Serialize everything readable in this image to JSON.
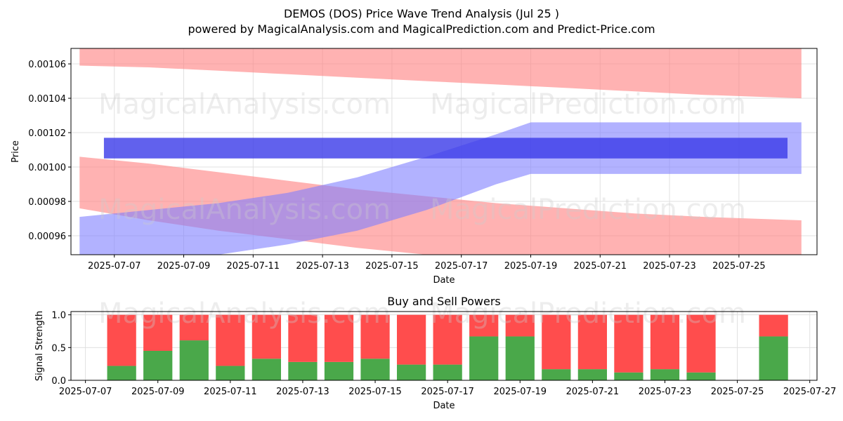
{
  "figure": {
    "title": "DEMOS (DOS) Price Wave Trend Analysis (Jul 25 )",
    "subtitle": "powered by MagicalAnalysis.com and MagicalPrediction.com and Predict-Price.com",
    "watermark_left": "MagicalAnalysis.com",
    "watermark_right": "MagicalPrediction.com"
  },
  "colors": {
    "red_band": "#ff7f7f",
    "blue_band": "#7f7fff",
    "blue_bar": "#3a3ae8",
    "buy": "#4aa84a",
    "sell": "#ff4d4d",
    "grid": "#e0e0e0"
  },
  "chart_data": [
    {
      "type": "area",
      "title": "",
      "xlabel": "Date",
      "ylabel": "Price",
      "xlim": [
        "2025-07-05T18:00",
        "2025-07-27T06:00"
      ],
      "ylim": [
        0.000949,
        0.001069
      ],
      "grid": true,
      "x_ticks": [
        "2025-07-07",
        "2025-07-09",
        "2025-07-11",
        "2025-07-13",
        "2025-07-15",
        "2025-07-17",
        "2025-07-19",
        "2025-07-21",
        "2025-07-23",
        "2025-07-25"
      ],
      "y_ticks": [
        "0.00096",
        "0.00098",
        "0.00100",
        "0.00102",
        "0.00104",
        "0.00106"
      ],
      "bands": [
        {
          "color": "red",
          "opacity": 0.6,
          "x": [
            "2025-07-06",
            "2025-07-08",
            "2025-07-10",
            "2025-07-12",
            "2025-07-14",
            "2025-07-16",
            "2025-07-18",
            "2025-07-20",
            "2025-07-22",
            "2025-07-24",
            "2025-07-26.8"
          ],
          "upper": [
            0.00108,
            0.00108,
            0.00108,
            0.00108,
            0.00108,
            0.00108,
            0.001075,
            0.001075,
            0.00107,
            0.00107,
            0.00107
          ],
          "lower": [
            0.001059,
            0.001058,
            0.001056,
            0.001054,
            0.001052,
            0.00105,
            0.001048,
            0.001046,
            0.001044,
            0.001042,
            0.00104
          ]
        },
        {
          "color": "red",
          "opacity": 0.6,
          "x": [
            "2025-07-06",
            "2025-07-08",
            "2025-07-10",
            "2025-07-12",
            "2025-07-14",
            "2025-07-16",
            "2025-07-18",
            "2025-07-20",
            "2025-07-22",
            "2025-07-24",
            "2025-07-26.8"
          ],
          "upper": [
            0.001006,
            0.001002,
            0.000997,
            0.000992,
            0.000987,
            0.000983,
            0.000979,
            0.000976,
            0.000973,
            0.000971,
            0.000969
          ],
          "lower": [
            0.000976,
            0.000969,
            0.000963,
            0.000958,
            0.000953,
            0.000949,
            0.000945,
            0.000942,
            0.00094,
            0.000938,
            0.000937
          ]
        },
        {
          "color": "blue",
          "opacity": 0.6,
          "x": [
            "2025-07-06",
            "2025-07-08",
            "2025-07-10",
            "2025-07-12",
            "2025-07-14",
            "2025-07-16",
            "2025-07-18",
            "2025-07-19",
            "2025-07-26.8"
          ],
          "upper": [
            0.000971,
            0.000975,
            0.000979,
            0.000985,
            0.000994,
            0.001006,
            0.001019,
            0.001026,
            0.001026
          ],
          "lower": [
            0.000948,
            0.000948,
            0.000949,
            0.000955,
            0.000963,
            0.000975,
            0.00099,
            0.000996,
            0.000996
          ]
        }
      ],
      "bar_segments": [
        {
          "color": "blue",
          "x0": "2025-07-06.7",
          "x1": "2025-07-26.4",
          "y0": 0.001005,
          "y1": 0.001017
        }
      ]
    },
    {
      "type": "bar",
      "title": "Buy and Sell Powers",
      "xlabel": "Date",
      "ylabel": "Signal Strength",
      "xlim": [
        "2025-07-06.6",
        "2025-07-27.2"
      ],
      "ylim": [
        0,
        1.05
      ],
      "grid": true,
      "x_ticks": [
        "2025-07-07",
        "2025-07-09",
        "2025-07-11",
        "2025-07-13",
        "2025-07-15",
        "2025-07-17",
        "2025-07-19",
        "2025-07-21",
        "2025-07-23",
        "2025-07-25",
        "2025-07-27"
      ],
      "y_ticks": [
        "0.0",
        "0.5",
        "1.0"
      ],
      "categories": [
        "2025-07-08",
        "2025-07-09",
        "2025-07-10",
        "2025-07-11",
        "2025-07-12",
        "2025-07-13",
        "2025-07-14",
        "2025-07-15",
        "2025-07-16",
        "2025-07-17",
        "2025-07-18",
        "2025-07-19",
        "2025-07-20",
        "2025-07-21",
        "2025-07-22",
        "2025-07-23",
        "2025-07-24",
        "2025-07-26"
      ],
      "series": [
        {
          "color": "green",
          "values": [
            0.22,
            0.45,
            0.61,
            0.22,
            0.33,
            0.28,
            0.28,
            0.33,
            0.24,
            0.24,
            0.67,
            0.67,
            0.17,
            0.17,
            0.12,
            0.17,
            0.12,
            0.67
          ]
        },
        {
          "color": "red",
          "values": [
            0.78,
            0.55,
            0.39,
            0.78,
            0.67,
            0.72,
            0.72,
            0.67,
            0.76,
            0.76,
            0.33,
            0.33,
            0.83,
            0.83,
            0.88,
            0.83,
            0.88,
            0.33
          ]
        }
      ]
    }
  ]
}
